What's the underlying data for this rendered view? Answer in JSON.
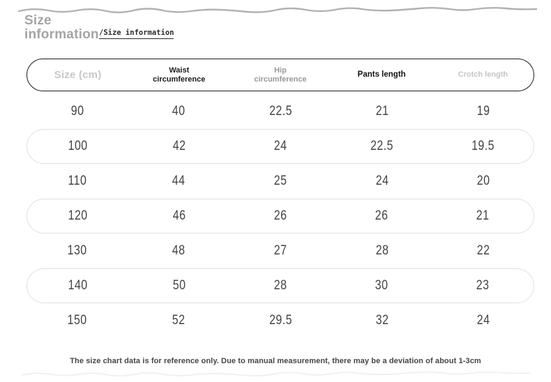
{
  "page": {
    "title_line1": "Size",
    "title_line2": "information",
    "subtitle": "/Size information",
    "footer_note": "The size chart data is for reference only. Due to manual measurement, there may be a deviation of about 1-3cm"
  },
  "chart_data": {
    "type": "table",
    "title": "Size information",
    "columns": [
      "Size (cm)",
      "Waist circumference",
      "Hip circumference",
      "Pants length",
      "Crotch length"
    ],
    "rows": [
      [
        "90",
        "40",
        "22.5",
        "21",
        "19"
      ],
      [
        "100",
        "42",
        "24",
        "22.5",
        "19.5"
      ],
      [
        "110",
        "44",
        "25",
        "24",
        "20"
      ],
      [
        "120",
        "46",
        "26",
        "26",
        "21"
      ],
      [
        "130",
        "48",
        "27",
        "28",
        "22"
      ],
      [
        "140",
        "50",
        "28",
        "30",
        "23"
      ],
      [
        "150",
        "52",
        "29.5",
        "32",
        "24"
      ]
    ],
    "layout_hints": {
      "striped_rows_outlined": [
        1,
        3,
        5
      ],
      "header_outline_color": "#1b1b1b",
      "row_outline_color": "#e2e0de"
    }
  },
  "colors": {
    "background": "#ffffff",
    "title_gray": "#a7a4a3",
    "subtitle_dark": "#2b2a29",
    "top_wave": "#b4b1b0",
    "bottom_wave": "#efedec",
    "header_border": "#1b1b1b",
    "row_border": "#e2e0de",
    "number_text": "#454341",
    "footer_text": "#454545"
  }
}
